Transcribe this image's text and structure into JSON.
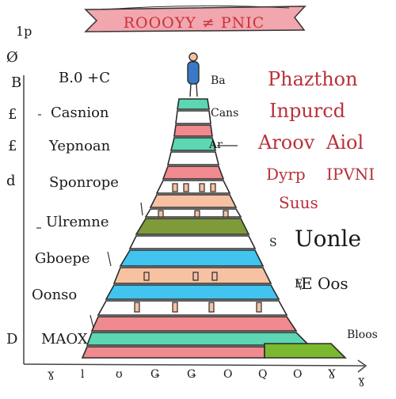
{
  "banner": {
    "title": "ROOOYY ≠ PNIC"
  },
  "corner_label": "1p",
  "left_labels": [
    {
      "symbol": "Ø",
      "text": ""
    },
    {
      "symbol": "B",
      "text": "B.0 +C"
    },
    {
      "symbol": "£",
      "text": "Casnion"
    },
    {
      "symbol": "£",
      "text": "Yepnoan"
    },
    {
      "symbol": "d",
      "text": "Sponrope"
    },
    {
      "symbol": "",
      "text": "Ulremne"
    },
    {
      "symbol": "",
      "text": "Gboepe"
    },
    {
      "symbol": "",
      "text": "Oonso"
    },
    {
      "symbol": "D",
      "text": "MAOX"
    }
  ],
  "mid_labels": [
    "Ba",
    "Cans",
    "Ar",
    "S",
    "E"
  ],
  "right_labels": {
    "row1": "Phazthon",
    "row2": "Inpurcd",
    "row3a": "Aroov",
    "row3b": "Aiol",
    "row4a": "Dyrp",
    "row4b": "IPVNI",
    "row4c": "Suus",
    "row5": "Uonle",
    "row6": "E Oos"
  },
  "axis_corner": "Bloos",
  "x_ticks": [
    "ɣ",
    "l",
    "ʊ",
    "Ǥ",
    "Ǥ",
    "O",
    "Q",
    "O",
    "Ɣ",
    "ɣ"
  ],
  "colors": {
    "pink": "#f08a8e",
    "teal": "#5cd6b3",
    "green": "#7ab82f",
    "olive": "#7e9a3a",
    "sky": "#41c4f0",
    "peach": "#f6c2a2",
    "banner": "#f2a6ad",
    "person": "#3a79c8"
  }
}
